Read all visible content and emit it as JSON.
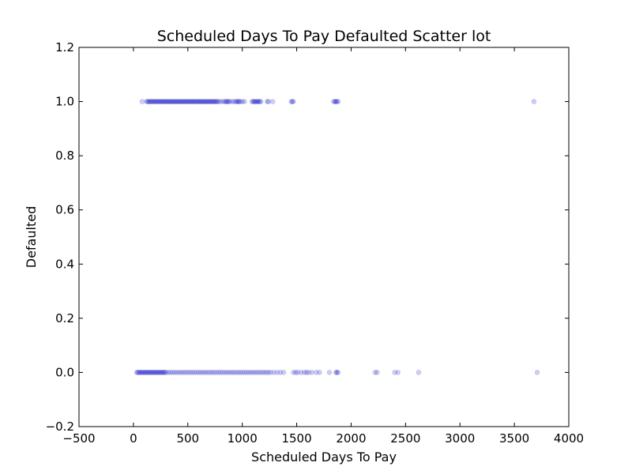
{
  "chart_data": {
    "type": "scatter",
    "title": "Scheduled Days To Pay Defaulted Scatter lot",
    "xlabel": "Scheduled Days To Pay",
    "ylabel": "Defaulted",
    "xlim": [
      -500,
      4000
    ],
    "ylim": [
      -0.2,
      1.2
    ],
    "x_ticks": [
      -500,
      0,
      500,
      1000,
      1500,
      2000,
      2500,
      3000,
      3500,
      4000
    ],
    "x_tick_labels": [
      "−500",
      "0",
      "500",
      "1000",
      "1500",
      "2000",
      "2500",
      "3000",
      "3500",
      "4000"
    ],
    "y_ticks": [
      -0.2,
      0.0,
      0.2,
      0.4,
      0.6,
      0.8,
      1.0,
      1.2
    ],
    "y_tick_labels": [
      "−0.2",
      "0.0",
      "0.2",
      "0.4",
      "0.6",
      "0.8",
      "1.0",
      "1.2"
    ],
    "grid": false,
    "legend": "none",
    "marker_color": "#0000ff",
    "marker_alpha": 0.2,
    "series": [
      {
        "x": [
          80,
          120,
          130,
          140,
          150,
          160,
          170,
          180,
          190,
          200,
          210,
          220,
          230,
          240,
          250,
          260,
          270,
          280,
          290,
          300,
          310,
          320,
          330,
          340,
          350,
          360,
          370,
          380,
          390,
          400,
          410,
          420,
          430,
          440,
          450,
          460,
          470,
          480,
          490,
          500,
          510,
          520,
          530,
          540,
          550,
          560,
          570,
          580,
          590,
          600,
          610,
          620,
          630,
          640,
          650,
          660,
          670,
          680,
          690,
          700,
          710,
          720,
          730,
          740,
          750,
          760,
          770,
          780,
          800,
          820,
          840,
          850,
          860,
          870,
          880,
          900,
          920,
          940,
          950,
          960,
          970,
          980,
          1000,
          1020,
          1090,
          1100,
          1110,
          1120,
          1130,
          1140,
          1150,
          1160,
          1170,
          1230,
          1240,
          1280,
          1450,
          1460,
          1470,
          1840,
          1850,
          1860,
          1870,
          1880,
          3680
        ],
        "y": [
          1,
          1,
          1,
          1,
          1,
          1,
          1,
          1,
          1,
          1,
          1,
          1,
          1,
          1,
          1,
          1,
          1,
          1,
          1,
          1,
          1,
          1,
          1,
          1,
          1,
          1,
          1,
          1,
          1,
          1,
          1,
          1,
          1,
          1,
          1,
          1,
          1,
          1,
          1,
          1,
          1,
          1,
          1,
          1,
          1,
          1,
          1,
          1,
          1,
          1,
          1,
          1,
          1,
          1,
          1,
          1,
          1,
          1,
          1,
          1,
          1,
          1,
          1,
          1,
          1,
          1,
          1,
          1,
          1,
          1,
          1,
          1,
          1,
          1,
          1,
          1,
          1,
          1,
          1,
          1,
          1,
          1,
          1,
          1,
          1,
          1,
          1,
          1,
          1,
          1,
          1,
          1,
          1,
          1,
          1,
          1,
          1,
          1,
          1,
          1,
          1,
          1,
          1,
          1,
          1
        ]
      },
      {
        "x": [
          30,
          40,
          50,
          60,
          70,
          80,
          90,
          100,
          110,
          120,
          130,
          140,
          150,
          160,
          170,
          180,
          190,
          200,
          210,
          220,
          230,
          240,
          250,
          260,
          270,
          280,
          290,
          300,
          320,
          340,
          360,
          380,
          400,
          420,
          440,
          460,
          480,
          500,
          520,
          540,
          560,
          580,
          600,
          620,
          640,
          660,
          680,
          700,
          720,
          740,
          760,
          780,
          800,
          820,
          840,
          860,
          880,
          900,
          920,
          940,
          960,
          980,
          1000,
          1020,
          1040,
          1060,
          1080,
          1100,
          1120,
          1140,
          1160,
          1180,
          1200,
          1220,
          1240,
          1260,
          1290,
          1320,
          1350,
          1380,
          1470,
          1490,
          1510,
          1540,
          1570,
          1590,
          1610,
          1640,
          1680,
          1710,
          1800,
          1860,
          1870,
          1880,
          2220,
          2240,
          2400,
          2430,
          2620,
          3710
        ],
        "y": [
          0,
          0,
          0,
          0,
          0,
          0,
          0,
          0,
          0,
          0,
          0,
          0,
          0,
          0,
          0,
          0,
          0,
          0,
          0,
          0,
          0,
          0,
          0,
          0,
          0,
          0,
          0,
          0,
          0,
          0,
          0,
          0,
          0,
          0,
          0,
          0,
          0,
          0,
          0,
          0,
          0,
          0,
          0,
          0,
          0,
          0,
          0,
          0,
          0,
          0,
          0,
          0,
          0,
          0,
          0,
          0,
          0,
          0,
          0,
          0,
          0,
          0,
          0,
          0,
          0,
          0,
          0,
          0,
          0,
          0,
          0,
          0,
          0,
          0,
          0,
          0,
          0,
          0,
          0,
          0,
          0,
          0,
          0,
          0,
          0,
          0,
          0,
          0,
          0,
          0,
          0,
          0,
          0,
          0,
          0,
          0,
          0,
          0,
          0,
          0
        ]
      }
    ]
  }
}
